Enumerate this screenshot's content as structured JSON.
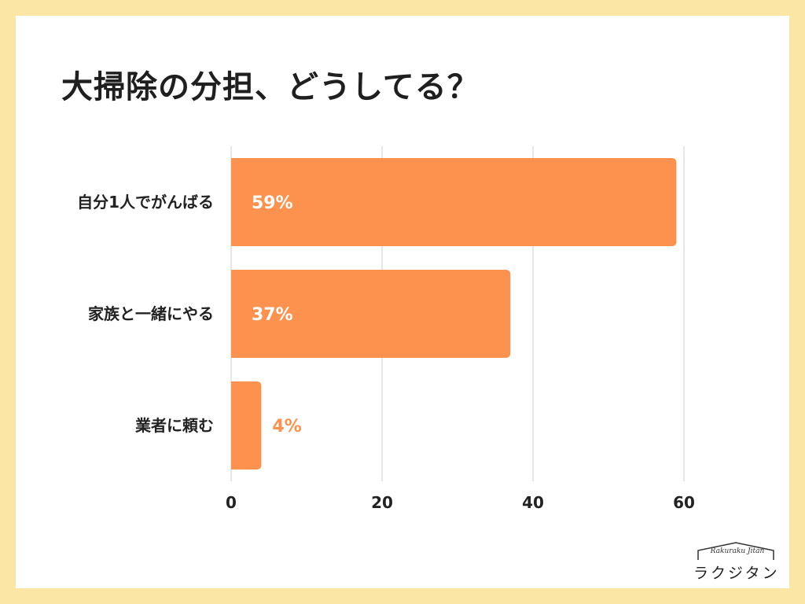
{
  "title": "大掃除の分担、どうしてる？",
  "colors": {
    "background": "#fbe6a6",
    "bar": "#fd924e",
    "grid": "#cccccc",
    "in_bar_text": "#ffffff"
  },
  "logo": {
    "script": "Rakuraku Jitan",
    "kana": "ラクジタン"
  },
  "chart_data": {
    "type": "bar",
    "orientation": "horizontal",
    "title": "大掃除の分担、どうしてる？",
    "categories": [
      "自分1人でがんばる",
      "家族と一緒にやる",
      "業者に頼む"
    ],
    "values": [
      59,
      37,
      4
    ],
    "value_labels": [
      "59%",
      "37%",
      "4%"
    ],
    "xlim": [
      0,
      60
    ],
    "xticks": [
      0,
      20,
      40,
      60
    ],
    "tick_labels": [
      "0",
      "20",
      "40",
      "60"
    ],
    "grid": true,
    "xlabel": "",
    "ylabel": ""
  }
}
